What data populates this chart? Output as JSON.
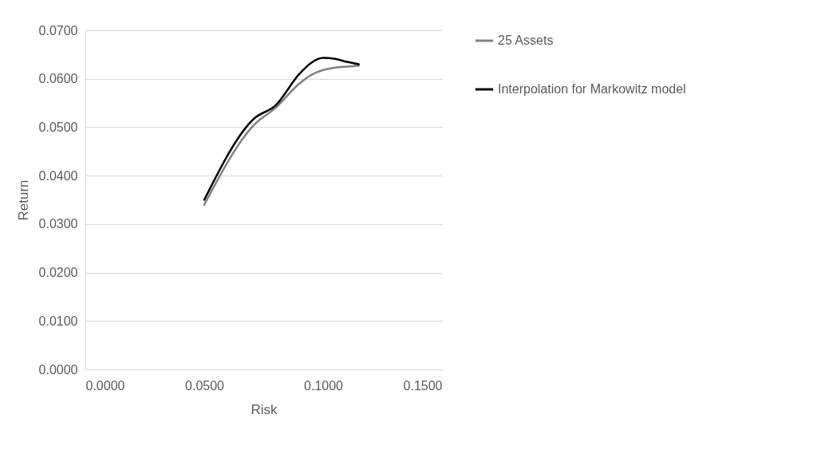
{
  "chart_data": {
    "type": "line",
    "xlabel": "Risk",
    "ylabel": "Return",
    "xlim": [
      0,
      0.15
    ],
    "xticks": [
      {
        "value": 0,
        "label": "0.0000"
      },
      {
        "value": 0.05,
        "label": "0.0500"
      },
      {
        "value": 0.1,
        "label": "0.1000"
      },
      {
        "value": 0.15,
        "label": "0.1500"
      }
    ],
    "ylim": [
      0,
      0.07
    ],
    "yticks": [
      {
        "value": 0,
        "label": "0.0000"
      },
      {
        "value": 0.01,
        "label": "0.0100"
      },
      {
        "value": 0.02,
        "label": "0.0200"
      },
      {
        "value": 0.03,
        "label": "0.0300"
      },
      {
        "value": 0.04,
        "label": "0.0400"
      },
      {
        "value": 0.05,
        "label": "0.0500"
      },
      {
        "value": 0.06,
        "label": "0.0600"
      },
      {
        "value": 0.07,
        "label": "0.0700"
      }
    ],
    "x": [
      0.05,
      0.071,
      0.08,
      0.09,
      0.095,
      0.1,
      0.105,
      0.11,
      0.115
    ],
    "series": [
      {
        "name": "25 Assets",
        "color": "#808080",
        "values": [
          0.034,
          0.0505,
          0.054,
          0.059,
          0.0608,
          0.0618,
          0.0623,
          0.0625,
          0.0627
        ]
      },
      {
        "name": "Interpolation for Markowitz model",
        "color": "#000000",
        "values": [
          0.035,
          0.0518,
          0.0545,
          0.061,
          0.0633,
          0.0643,
          0.0641,
          0.0635,
          0.063
        ]
      }
    ],
    "grid": "y",
    "legend": "right",
    "line_style": "solid"
  }
}
